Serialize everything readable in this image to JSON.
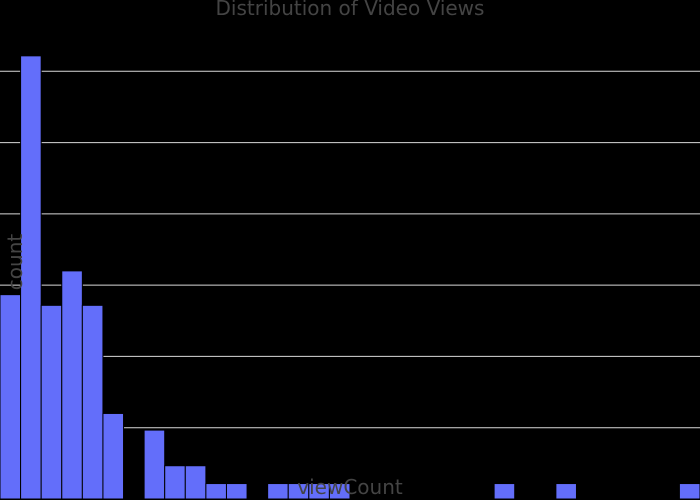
{
  "chart_data": {
    "type": "bar",
    "title": "Distribution of Video Views",
    "xlabel": "viewCount",
    "ylabel": "count",
    "bin_counts": [
      17.2,
      37.3,
      16.3,
      19.2,
      16.3,
      7.2,
      0,
      5.8,
      2.8,
      2.8,
      1.3,
      1.3,
      0,
      1.3,
      1.3,
      1.3,
      1.3,
      0,
      0,
      0,
      0,
      0,
      0,
      0,
      1.3,
      0,
      0,
      1.3,
      0,
      0,
      0,
      0,
      0,
      1.3
    ],
    "ylim": [
      0,
      42
    ],
    "y_gridlines": [
      6,
      12,
      18,
      24,
      30,
      36
    ],
    "bar_color": "#636efa",
    "grid": true,
    "background": "#000000"
  }
}
